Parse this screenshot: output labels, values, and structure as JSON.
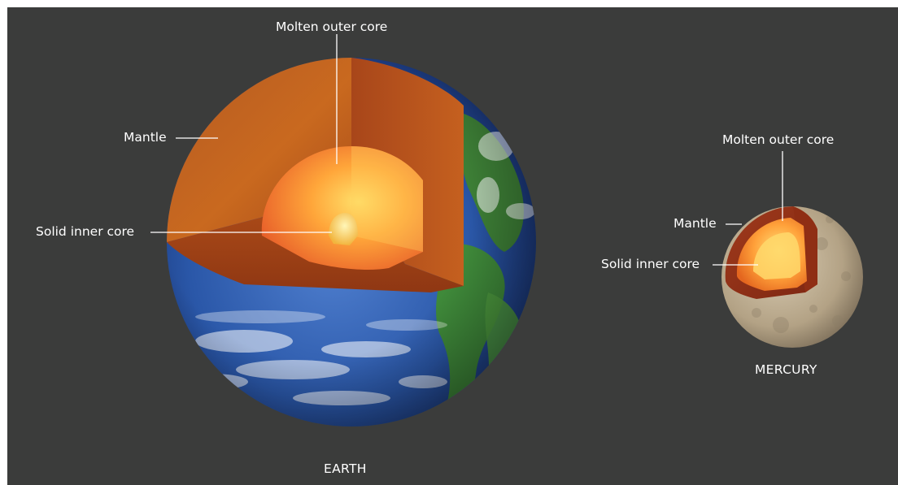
{
  "earth": {
    "name": "EARTH",
    "labels": {
      "outer_core": "Molten outer core",
      "mantle": "Mantle",
      "inner_core": "Solid inner core"
    }
  },
  "mercury": {
    "name": "MERCURY",
    "labels": {
      "outer_core": "Molten outer core",
      "mantle": "Mantle",
      "inner_core": "Solid inner core"
    }
  },
  "colors": {
    "background": "#3b3c3b",
    "ocean": "#2a57a8",
    "land": "#3f8a3a",
    "mantle": "#c8641f",
    "outer_core": "#f07a2a",
    "inner_core": "#f6c24a",
    "mercury_surface": "#b9a98f"
  }
}
